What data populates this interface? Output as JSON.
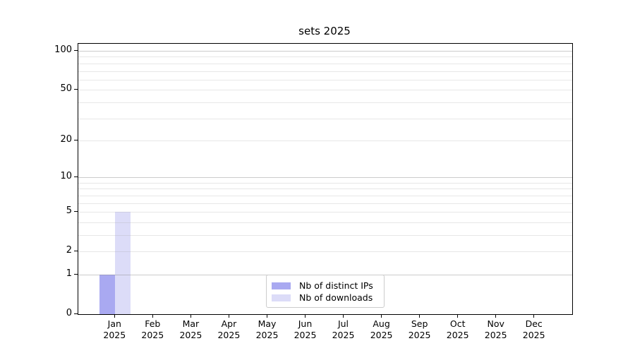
{
  "chart_data": {
    "type": "bar",
    "title": "sets 2025",
    "x_categories": [
      {
        "month": "Jan",
        "year": "2025"
      },
      {
        "month": "Feb",
        "year": "2025"
      },
      {
        "month": "Mar",
        "year": "2025"
      },
      {
        "month": "Apr",
        "year": "2025"
      },
      {
        "month": "May",
        "year": "2025"
      },
      {
        "month": "Jun",
        "year": "2025"
      },
      {
        "month": "Jul",
        "year": "2025"
      },
      {
        "month": "Aug",
        "year": "2025"
      },
      {
        "month": "Sep",
        "year": "2025"
      },
      {
        "month": "Oct",
        "year": "2025"
      },
      {
        "month": "Nov",
        "year": "2025"
      },
      {
        "month": "Dec",
        "year": "2025"
      }
    ],
    "series": [
      {
        "name": "Nb of distinct IPs",
        "color": "#a9a9f1",
        "values": [
          1,
          0,
          0,
          0,
          0,
          0,
          0,
          0,
          0,
          0,
          0,
          0
        ]
      },
      {
        "name": "Nb of downloads",
        "color": "#dcdcf8",
        "values": [
          5,
          0,
          0,
          0,
          0,
          0,
          0,
          0,
          0,
          0,
          0,
          0
        ]
      }
    ],
    "y_ticks": [
      0,
      1,
      2,
      5,
      10,
      20,
      50,
      100
    ],
    "y_minor_gridlines": [
      3,
      4,
      6,
      7,
      8,
      9,
      30,
      40,
      60,
      70,
      80,
      90
    ],
    "ylim": [
      0,
      100
    ],
    "scale": "log(1+y)",
    "grid": true,
    "legend_position": "lower center"
  },
  "colors": {
    "grid_decade": "rgba(140,140,140,0.45)",
    "grid_minor": "rgba(170,170,170,0.28)",
    "axis": "#000000",
    "legend_border": "#cccccc"
  }
}
